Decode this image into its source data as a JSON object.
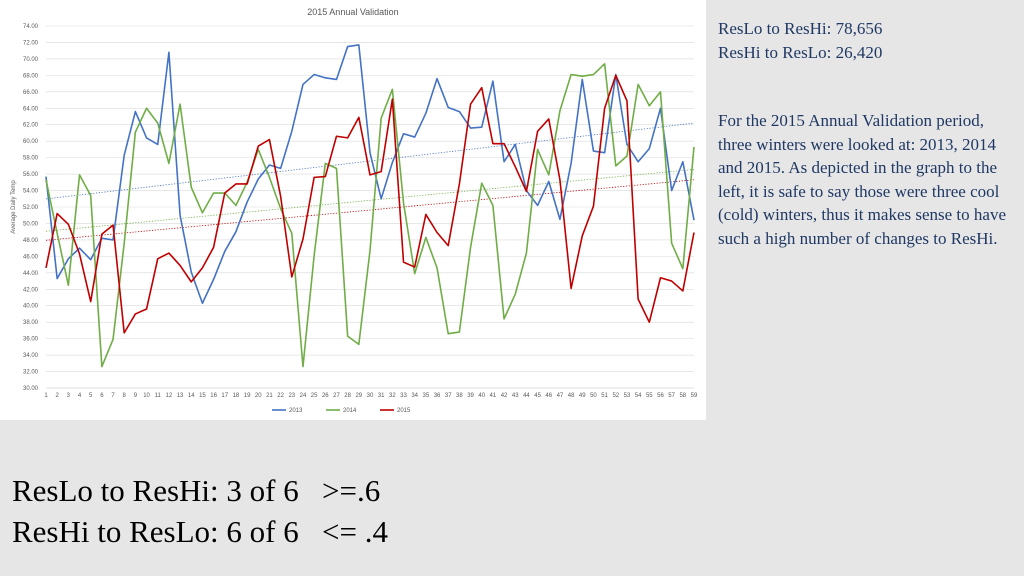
{
  "side_stats": {
    "line1": "ResLo to ResHi: 78,656",
    "line2": "ResHi to ResLo: 26,420"
  },
  "description": "For the 2015 Annual Validation period, three winters were looked at: 2013, 2014 and 2015.  As depicted in the graph to the left, it is safe to say those were three cool (cold) winters, thus it makes sense to have such a high number of changes to ResHi.",
  "summary": {
    "line1": "ResLo to ResHi: 3 of 6   >=.6",
    "line2": "ResHi to ResLo: 6 of 6   <= .4"
  },
  "chart_data": {
    "type": "line",
    "title": "2015 Annual Validation",
    "xlabel": "",
    "ylabel": "Average Daily Temp",
    "ylim": [
      30,
      74
    ],
    "ytick_step": 2,
    "grid": true,
    "legend_position": "bottom",
    "trendlines": true,
    "x": [
      1,
      2,
      3,
      4,
      5,
      6,
      7,
      8,
      9,
      10,
      11,
      12,
      13,
      14,
      15,
      16,
      17,
      18,
      19,
      20,
      21,
      22,
      23,
      24,
      25,
      26,
      27,
      28,
      29,
      30,
      31,
      32,
      33,
      34,
      35,
      36,
      37,
      38,
      39,
      40,
      41,
      42,
      43,
      44,
      45,
      46,
      47,
      48,
      49,
      50,
      51,
      52,
      53,
      54,
      55,
      56,
      57,
      58,
      59
    ],
    "series": [
      {
        "name": "2013",
        "color": "#4472c4",
        "values": [
          55.7,
          43.3,
          45.7,
          47.0,
          45.6,
          48.2,
          48.0,
          58.3,
          63.6,
          60.4,
          59.6,
          70.8,
          51.0,
          44.1,
          40.3,
          43.2,
          46.6,
          49.0,
          52.6,
          55.4,
          57.1,
          56.7,
          61.2,
          66.9,
          68.1,
          67.7,
          67.5,
          71.5,
          71.7,
          58.6,
          53.0,
          57.4,
          60.9,
          60.5,
          63.4,
          67.6,
          64.1,
          63.6,
          61.6,
          61.7,
          67.3,
          57.5,
          59.6,
          54.0,
          52.2,
          55.1,
          50.5,
          57.3,
          67.5,
          58.8,
          58.6,
          68.1,
          59.6,
          57.5,
          59.1,
          64.0,
          54.0,
          57.5,
          50.4
        ]
      },
      {
        "name": "2014",
        "color": "#70ad47",
        "values": [
          55.3,
          48.8,
          42.5,
          55.9,
          53.4,
          32.6,
          35.9,
          47.6,
          61.1,
          64.0,
          62.2,
          57.3,
          64.5,
          54.4,
          51.3,
          53.7,
          53.7,
          52.2,
          55.0,
          59.0,
          55.6,
          51.8,
          48.8,
          32.6,
          46.1,
          57.3,
          56.7,
          36.3,
          35.3,
          46.7,
          62.8,
          66.3,
          52.5,
          43.9,
          48.3,
          44.6,
          36.6,
          36.8,
          47.1,
          54.9,
          52.2,
          38.4,
          41.4,
          46.4,
          59.0,
          55.9,
          63.7,
          68.1,
          67.9,
          68.1,
          69.4,
          57.0,
          58.2,
          66.9,
          64.3,
          66.0,
          47.6,
          44.5,
          59.3
        ]
      },
      {
        "name": "2015",
        "color": "#c00000",
        "values": [
          44.6,
          51.2,
          49.9,
          46.3,
          40.5,
          48.7,
          49.8,
          36.7,
          39.0,
          39.6,
          45.7,
          46.4,
          44.9,
          42.9,
          44.6,
          47.1,
          53.7,
          54.8,
          54.8,
          59.4,
          60.2,
          53.3,
          43.5,
          48.1,
          55.6,
          55.7,
          60.6,
          60.4,
          62.9,
          55.9,
          56.3,
          65.1,
          45.3,
          44.7,
          51.1,
          48.9,
          47.3,
          54.8,
          64.5,
          66.5,
          59.7,
          59.7,
          56.9,
          53.9,
          61.2,
          62.7,
          55.3,
          42.1,
          48.5,
          52.1,
          64.0,
          68.0,
          64.9,
          40.8,
          38.0,
          43.4,
          43.0,
          41.8,
          48.9
        ]
      }
    ]
  }
}
